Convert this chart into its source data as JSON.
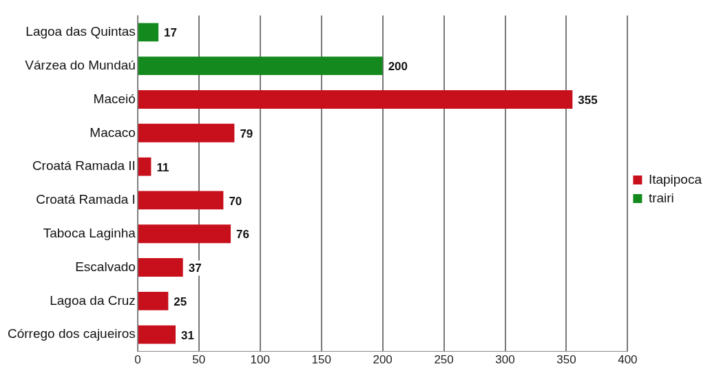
{
  "chart_data": {
    "type": "bar",
    "orientation": "horizontal",
    "stacked": true,
    "categories": [
      "Lagoa das Quintas",
      "Várzea do Mundaú",
      "Maceió",
      "Macaco",
      "Croatá Ramada II",
      "Croatá Ramada I",
      "Taboca Laginha",
      "Escalvado",
      "Lagoa da Cruz",
      "Córrego dos cajueiros"
    ],
    "series": [
      {
        "name": "Itapipoca",
        "color": "#c8101c",
        "values": [
          null,
          null,
          355,
          79,
          11,
          70,
          76,
          37,
          25,
          31
        ]
      },
      {
        "name": "trairi",
        "color": "#148a1e",
        "values": [
          17,
          200,
          null,
          null,
          null,
          null,
          null,
          null,
          null,
          null
        ]
      }
    ],
    "xlim": [
      0,
      400
    ],
    "xticks": [
      0,
      50,
      100,
      150,
      200,
      250,
      300,
      350,
      400
    ],
    "grid": "x",
    "legend": "right",
    "data_labels": true
  }
}
